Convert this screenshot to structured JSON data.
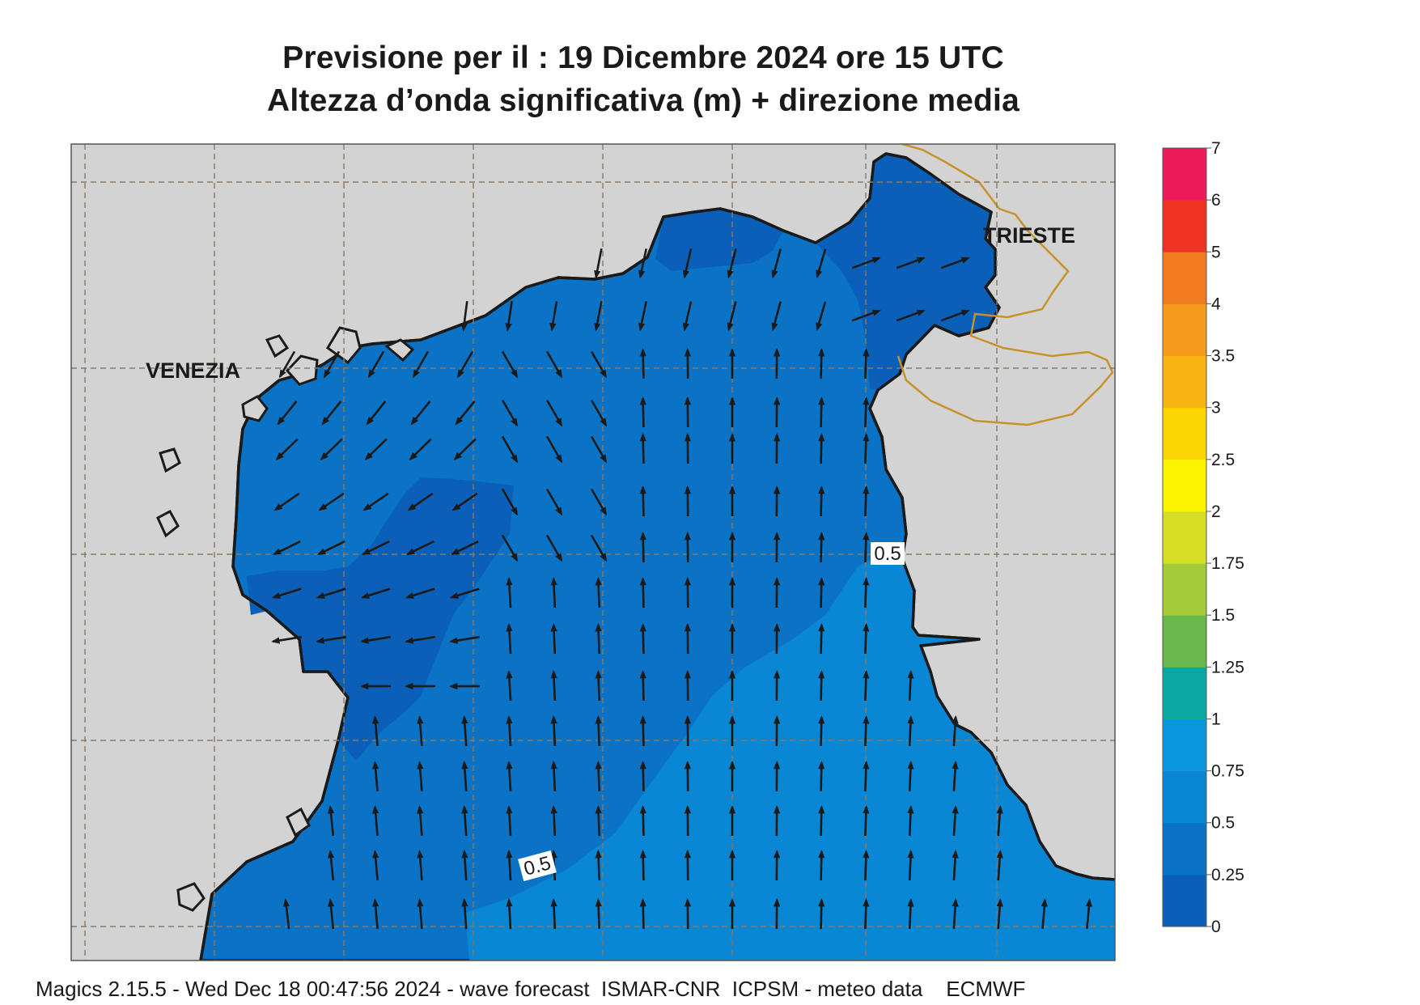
{
  "title_line1": "Previsione per il  :  19 Dicembre  2024   ore 15 UTC",
  "title_line2": "Altezza d’onda significativa (m) + direzione media",
  "places": [
    {
      "name": "VENEZIA"
    },
    {
      "name": "TRIESTE"
    }
  ],
  "contour_labels": [
    "0.5",
    "0.5"
  ],
  "colorbar": {
    "ticks": [
      "0",
      "0.25",
      "0.5",
      "0.75",
      "1",
      "1.25",
      "1.5",
      "1.75",
      "2",
      "2.5",
      "3",
      "3.5",
      "4",
      "5",
      "6",
      "7"
    ],
    "colors": [
      "#0a60b8",
      "#0a73c6",
      "#0a87d4",
      "#0a98dc",
      "#0aa8a0",
      "#6ab84c",
      "#a6cb3a",
      "#d6de26",
      "#f9f400",
      "#fbd604",
      "#f9b514",
      "#f59b1d",
      "#f27b22",
      "#ee3424",
      "#ec1b5b"
    ]
  },
  "map_colors": {
    "land": "#d3d3d3",
    "sea_0_025": "#0a60b8",
    "sea_025_05": "#0a73c6",
    "sea_05_075": "#0a87d4",
    "border": "#c8922a",
    "grid": "#8a7a66"
  },
  "footer": "Magics 2.15.5 - Wed Dec 18 00:47:56 2024 - wave forecast  ISMAR-CNR  ICPSM - meteo data    ECMWF"
}
